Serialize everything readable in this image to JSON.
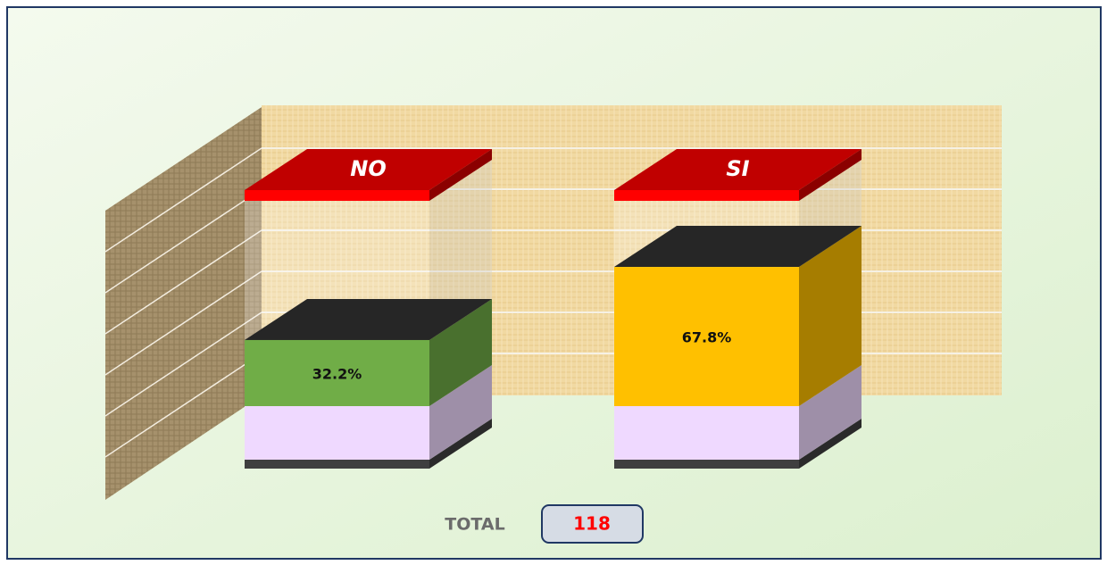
{
  "chart_data": {
    "type": "bar",
    "categories": [
      "NO",
      "SI"
    ],
    "values": [
      32.2,
      67.8
    ],
    "value_labels": [
      "32.2%",
      "67.8%"
    ],
    "colors": [
      "#70ad47",
      "#ffc000"
    ],
    "ylim": [
      0,
      100
    ],
    "total_label": "TOTAL",
    "total": 118
  }
}
